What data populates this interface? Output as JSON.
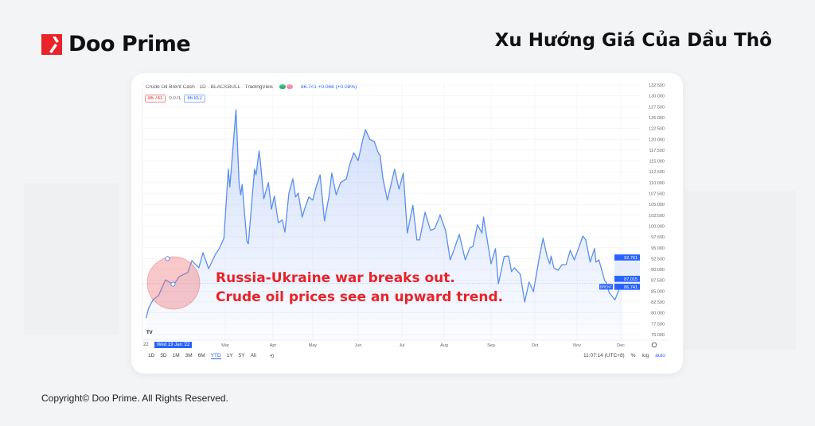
{
  "brand": {
    "name": "Doo Prime",
    "accent": "#e8232a"
  },
  "title": "Xu Hướng Giá Của Dầu Thô",
  "copyright": "Copyright© Doo Prime. All Rights Reserved.",
  "tv": {
    "symbol_line": "Crude Oil Brent Cash · 1D · BLACKBULL · TradingView",
    "last_change": "86.741 +0.068 (+0.08%)",
    "bid": "86.741",
    "spread": "0.071",
    "ask": "86.812",
    "crosshair_date": "Wed 19 Jan '22",
    "year_label": "22",
    "ranges": [
      "1D",
      "5D",
      "1M",
      "3M",
      "6M",
      "YTD",
      "1Y",
      "5Y",
      "All"
    ],
    "active_range": "YTD",
    "clock": "11:07:14 (UTC+8)",
    "scale_options": [
      "%",
      "log",
      "auto"
    ],
    "price_tags": {
      "high": "92.761",
      "mid": "87.015",
      "last": "86.741",
      "symbol": "BRENT"
    },
    "logo_mark": "TV"
  },
  "annotation": {
    "line1": "Russia-Ukraine war breaks out.",
    "line2": "Crude oil prices see an upward trend.",
    "color": "#e8232a"
  },
  "chart_data": {
    "type": "area",
    "line_color": "#5b8def",
    "ylim": [
      75,
      132.5
    ],
    "yticks": [
      "75.000",
      "77.500",
      "80.000",
      "82.500",
      "85.000",
      "87.500",
      "90.000",
      "92.500",
      "95.000",
      "97.500",
      "100.000",
      "102.500",
      "105.000",
      "107.500",
      "110.000",
      "112.500",
      "115.000",
      "117.500",
      "120.000",
      "122.500",
      "125.000",
      "127.500",
      "130.000",
      "132.500"
    ],
    "xticks": [
      "Mar",
      "Apr",
      "May",
      "Jun",
      "Jul",
      "Aug",
      "Sep",
      "Oct",
      "Nov",
      "Dec"
    ],
    "grid": true,
    "points": [
      [
        "2022-01-03",
        78.8
      ],
      [
        "2022-01-05",
        81.2
      ],
      [
        "2022-01-08",
        83
      ],
      [
        "2022-01-12",
        84
      ],
      [
        "2022-01-17",
        87.6
      ],
      [
        "2022-01-23",
        86.5
      ],
      [
        "2022-01-27",
        88.4
      ],
      [
        "2022-02-02",
        89.3
      ],
      [
        "2022-02-05",
        92
      ],
      [
        "2022-02-10",
        90.4
      ],
      [
        "2022-02-13",
        93.9
      ],
      [
        "2022-02-17",
        90.2
      ],
      [
        "2022-02-22",
        93.5
      ],
      [
        "2022-02-25",
        95
      ],
      [
        "2022-02-28",
        97.2
      ],
      [
        "2022-03-03",
        113.1
      ],
      [
        "2022-03-04",
        109
      ],
      [
        "2022-03-08",
        126.8
      ],
      [
        "2022-03-10",
        110
      ],
      [
        "2022-03-11",
        107.2
      ],
      [
        "2022-03-12",
        109.6
      ],
      [
        "2022-03-15",
        96.6
      ],
      [
        "2022-03-16",
        95.9
      ],
      [
        "2022-03-18",
        104.5
      ],
      [
        "2022-03-20",
        113.1
      ],
      [
        "2022-03-21",
        111.8
      ],
      [
        "2022-03-23",
        117.3
      ],
      [
        "2022-03-24",
        114.2
      ],
      [
        "2022-03-26",
        106.3
      ],
      [
        "2022-03-29",
        110
      ],
      [
        "2022-03-31",
        103.9
      ],
      [
        "2022-04-02",
        106.9
      ],
      [
        "2022-04-05",
        100.8
      ],
      [
        "2022-04-08",
        101.4
      ],
      [
        "2022-04-10",
        98.6
      ],
      [
        "2022-04-13",
        107.6
      ],
      [
        "2022-04-16",
        110.9
      ],
      [
        "2022-04-18",
        106.7
      ],
      [
        "2022-04-20",
        107.6
      ],
      [
        "2022-04-23",
        102.1
      ],
      [
        "2022-04-25",
        104.1
      ],
      [
        "2022-04-28",
        106.7
      ],
      [
        "2022-05-01",
        106
      ],
      [
        "2022-05-03",
        108.7
      ],
      [
        "2022-05-06",
        111.8
      ],
      [
        "2022-05-09",
        101.2
      ],
      [
        "2022-05-12",
        106.7
      ],
      [
        "2022-05-14",
        112.2
      ],
      [
        "2022-05-17",
        107.2
      ],
      [
        "2022-05-20",
        110
      ],
      [
        "2022-05-24",
        110.9
      ],
      [
        "2022-05-26",
        114
      ],
      [
        "2022-05-29",
        116.9
      ],
      [
        "2022-06-01",
        115.1
      ],
      [
        "2022-06-04",
        119.7
      ],
      [
        "2022-06-06",
        122.2
      ],
      [
        "2022-06-09",
        120
      ],
      [
        "2022-06-12",
        119.5
      ],
      [
        "2022-06-15",
        116.7
      ],
      [
        "2022-06-16",
        116.4
      ],
      [
        "2022-06-18",
        110.9
      ],
      [
        "2022-06-21",
        106
      ],
      [
        "2022-06-26",
        113.1
      ],
      [
        "2022-06-29",
        108.5
      ],
      [
        "2022-07-02",
        112.2
      ],
      [
        "2022-07-05",
        98.4
      ],
      [
        "2022-07-09",
        104.8
      ],
      [
        "2022-07-12",
        96.8
      ],
      [
        "2022-07-14",
        96.8
      ],
      [
        "2022-07-18",
        103.2
      ],
      [
        "2022-07-22",
        99
      ],
      [
        "2022-07-25",
        99.4
      ],
      [
        "2022-07-28",
        101.7
      ],
      [
        "2022-07-29",
        102.6
      ],
      [
        "2022-08-02",
        99
      ],
      [
        "2022-08-05",
        92.2
      ],
      [
        "2022-08-08",
        95
      ],
      [
        "2022-08-11",
        98.1
      ],
      [
        "2022-08-15",
        92.2
      ],
      [
        "2022-08-18",
        95
      ],
      [
        "2022-08-20",
        95.3
      ],
      [
        "2022-08-23",
        100.3
      ],
      [
        "2022-08-26",
        98.4
      ],
      [
        "2022-08-27",
        102.1
      ],
      [
        "2022-09-01",
        91.3
      ],
      [
        "2022-09-04",
        94.8
      ],
      [
        "2022-09-06",
        86.7
      ],
      [
        "2022-09-10",
        93
      ],
      [
        "2022-09-13",
        93.1
      ],
      [
        "2022-09-15",
        89.5
      ],
      [
        "2022-09-17",
        90.4
      ],
      [
        "2022-09-21",
        88.9
      ],
      [
        "2022-09-24",
        82.5
      ],
      [
        "2022-09-27",
        87.1
      ],
      [
        "2022-09-30",
        84.9
      ],
      [
        "2022-10-04",
        92.2
      ],
      [
        "2022-10-07",
        97.2
      ],
      [
        "2022-10-10",
        93
      ],
      [
        "2022-10-12",
        91.3
      ],
      [
        "2022-10-13",
        93.1
      ],
      [
        "2022-10-15",
        90.4
      ],
      [
        "2022-10-18",
        89.8
      ],
      [
        "2022-10-21",
        91.1
      ],
      [
        "2022-10-24",
        91.1
      ],
      [
        "2022-10-27",
        94.4
      ],
      [
        "2022-10-30",
        92.2
      ],
      [
        "2022-11-02",
        94.8
      ],
      [
        "2022-11-05",
        97.7
      ],
      [
        "2022-11-07",
        96.8
      ],
      [
        "2022-11-10",
        91.7
      ],
      [
        "2022-11-13",
        94.8
      ],
      [
        "2022-11-14",
        91.7
      ],
      [
        "2022-11-16",
        92.2
      ],
      [
        "2022-11-20",
        87.4
      ],
      [
        "2022-11-21",
        87.1
      ],
      [
        "2022-11-23",
        84.7
      ],
      [
        "2022-11-27",
        83
      ],
      [
        "2022-12-01",
        86.5
      ],
      [
        "2022-12-02",
        86.741
      ]
    ],
    "markers": [
      [
        "2022-01-23",
        92.5
      ],
      [
        "2022-01-27",
        86.6
      ]
    ]
  }
}
